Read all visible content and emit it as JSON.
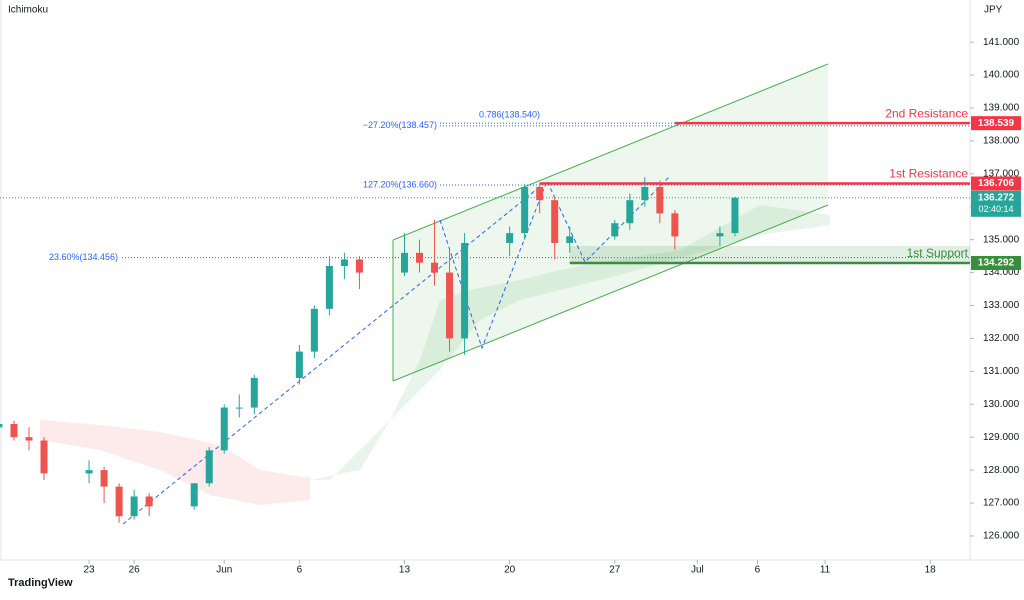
{
  "header": {
    "indicator": "Ichimoku",
    "currency": "JPY",
    "brand": "TradingView"
  },
  "chart_data": {
    "type": "candlestick",
    "x": [
      16,
      17,
      18,
      19,
      22,
      23,
      24,
      25,
      26,
      29,
      30,
      31,
      32,
      33,
      36,
      37,
      38,
      39,
      40,
      43,
      44,
      45,
      46,
      47,
      50,
      51,
      52,
      53,
      54,
      57,
      58,
      59,
      60,
      61,
      64,
      65
    ],
    "open": [
      129.3,
      129.4,
      129.0,
      128.9,
      127.9,
      128.0,
      127.5,
      126.6,
      127.2,
      126.9,
      127.6,
      128.6,
      129.9,
      129.9,
      130.8,
      131.6,
      132.9,
      134.2,
      134.4,
      134.0,
      134.6,
      134.3,
      134.0,
      132.0,
      134.9,
      135.2,
      136.6,
      136.2,
      134.9,
      135.1,
      135.5,
      136.2,
      136.6,
      135.8,
      135.1,
      135.2
    ],
    "high": [
      129.6,
      129.5,
      129.3,
      129.0,
      128.3,
      128.1,
      127.6,
      127.4,
      127.3,
      127.6,
      128.7,
      130.0,
      130.3,
      130.9,
      131.8,
      133.0,
      134.5,
      134.6,
      134.5,
      135.2,
      135.0,
      135.6,
      134.7,
      135.2,
      135.4,
      136.7,
      136.7,
      136.3,
      135.4,
      135.6,
      136.4,
      136.9,
      136.8,
      135.9,
      135.4,
      136.3
    ],
    "low": [
      129.0,
      128.9,
      128.6,
      127.7,
      127.6,
      127.0,
      126.4,
      126.5,
      126.6,
      126.8,
      127.5,
      128.5,
      129.6,
      129.7,
      130.6,
      131.4,
      132.7,
      133.8,
      133.5,
      133.9,
      134.0,
      133.6,
      131.6,
      131.5,
      134.5,
      135.0,
      135.8,
      134.4,
      134.6,
      135.0,
      135.3,
      136.0,
      135.5,
      134.7,
      134.8,
      135.1
    ],
    "close": [
      129.4,
      129.0,
      128.9,
      127.9,
      128.0,
      127.5,
      126.6,
      127.2,
      126.9,
      127.6,
      128.6,
      129.9,
      129.9,
      130.8,
      131.6,
      132.9,
      134.2,
      134.4,
      134.0,
      134.6,
      134.3,
      134.0,
      132.0,
      134.9,
      135.2,
      136.6,
      136.2,
      134.9,
      135.1,
      135.5,
      136.2,
      136.6,
      135.8,
      135.1,
      135.2,
      136.272
    ],
    "up_color": "#26a69a",
    "down_color": "#ef5350",
    "xlim": [
      16.07,
      80.65
    ],
    "xticks": [
      {
        "value": 22,
        "label": "23"
      },
      {
        "value": 25,
        "label": "26"
      },
      {
        "value": 31,
        "label": "Jun"
      },
      {
        "value": 36,
        "label": "6"
      },
      {
        "value": 43,
        "label": "13"
      },
      {
        "value": 50,
        "label": "20"
      },
      {
        "value": 57,
        "label": "27"
      },
      {
        "value": 62.5,
        "label": "Jul"
      },
      {
        "value": 66.5,
        "label": "6"
      },
      {
        "value": 71,
        "label": "11"
      },
      {
        "value": 78,
        "label": "18"
      }
    ],
    "ylim": [
      125.27,
      142.28
    ],
    "yticks": [
      {
        "value": 126,
        "label": "126.000"
      },
      {
        "value": 127,
        "label": "127.000"
      },
      {
        "value": 128,
        "label": "128.000"
      },
      {
        "value": 129,
        "label": "129.000"
      },
      {
        "value": 130,
        "label": "130.000"
      },
      {
        "value": 131,
        "label": "131.000"
      },
      {
        "value": 132,
        "label": "132.000"
      },
      {
        "value": 133,
        "label": "133.000"
      },
      {
        "value": 134,
        "label": "134.000"
      },
      {
        "value": 135,
        "label": "135.000"
      },
      {
        "value": 136,
        "label": "136.000"
      },
      {
        "value": 137,
        "label": "137.000"
      },
      {
        "value": 138,
        "label": "138.000"
      },
      {
        "value": 139,
        "label": "139.000"
      },
      {
        "value": 140,
        "label": "140.000"
      },
      {
        "value": 141,
        "label": "141.000"
      }
    ],
    "levels": [
      {
        "name": "2nd Resistance",
        "value": 138.539,
        "color": "#f23645",
        "start": 61
      },
      {
        "name": "1st Resistance",
        "value": 136.706,
        "color": "#f23645",
        "start": 52
      },
      {
        "name": "1st Support",
        "value": 134.292,
        "color": "#388e3c",
        "start": 54
      }
    ],
    "fib_labels": [
      {
        "label": "0.786(138.540)",
        "value": 138.54
      },
      {
        "label": "−27.20%(138.457)",
        "value": 138.457
      },
      {
        "label": "127.20%(136.660)",
        "value": 136.66
      },
      {
        "label": "23.60%(134.456)",
        "value": 134.456
      }
    ],
    "last_price": 136.272,
    "countdown": "02:40:14"
  }
}
